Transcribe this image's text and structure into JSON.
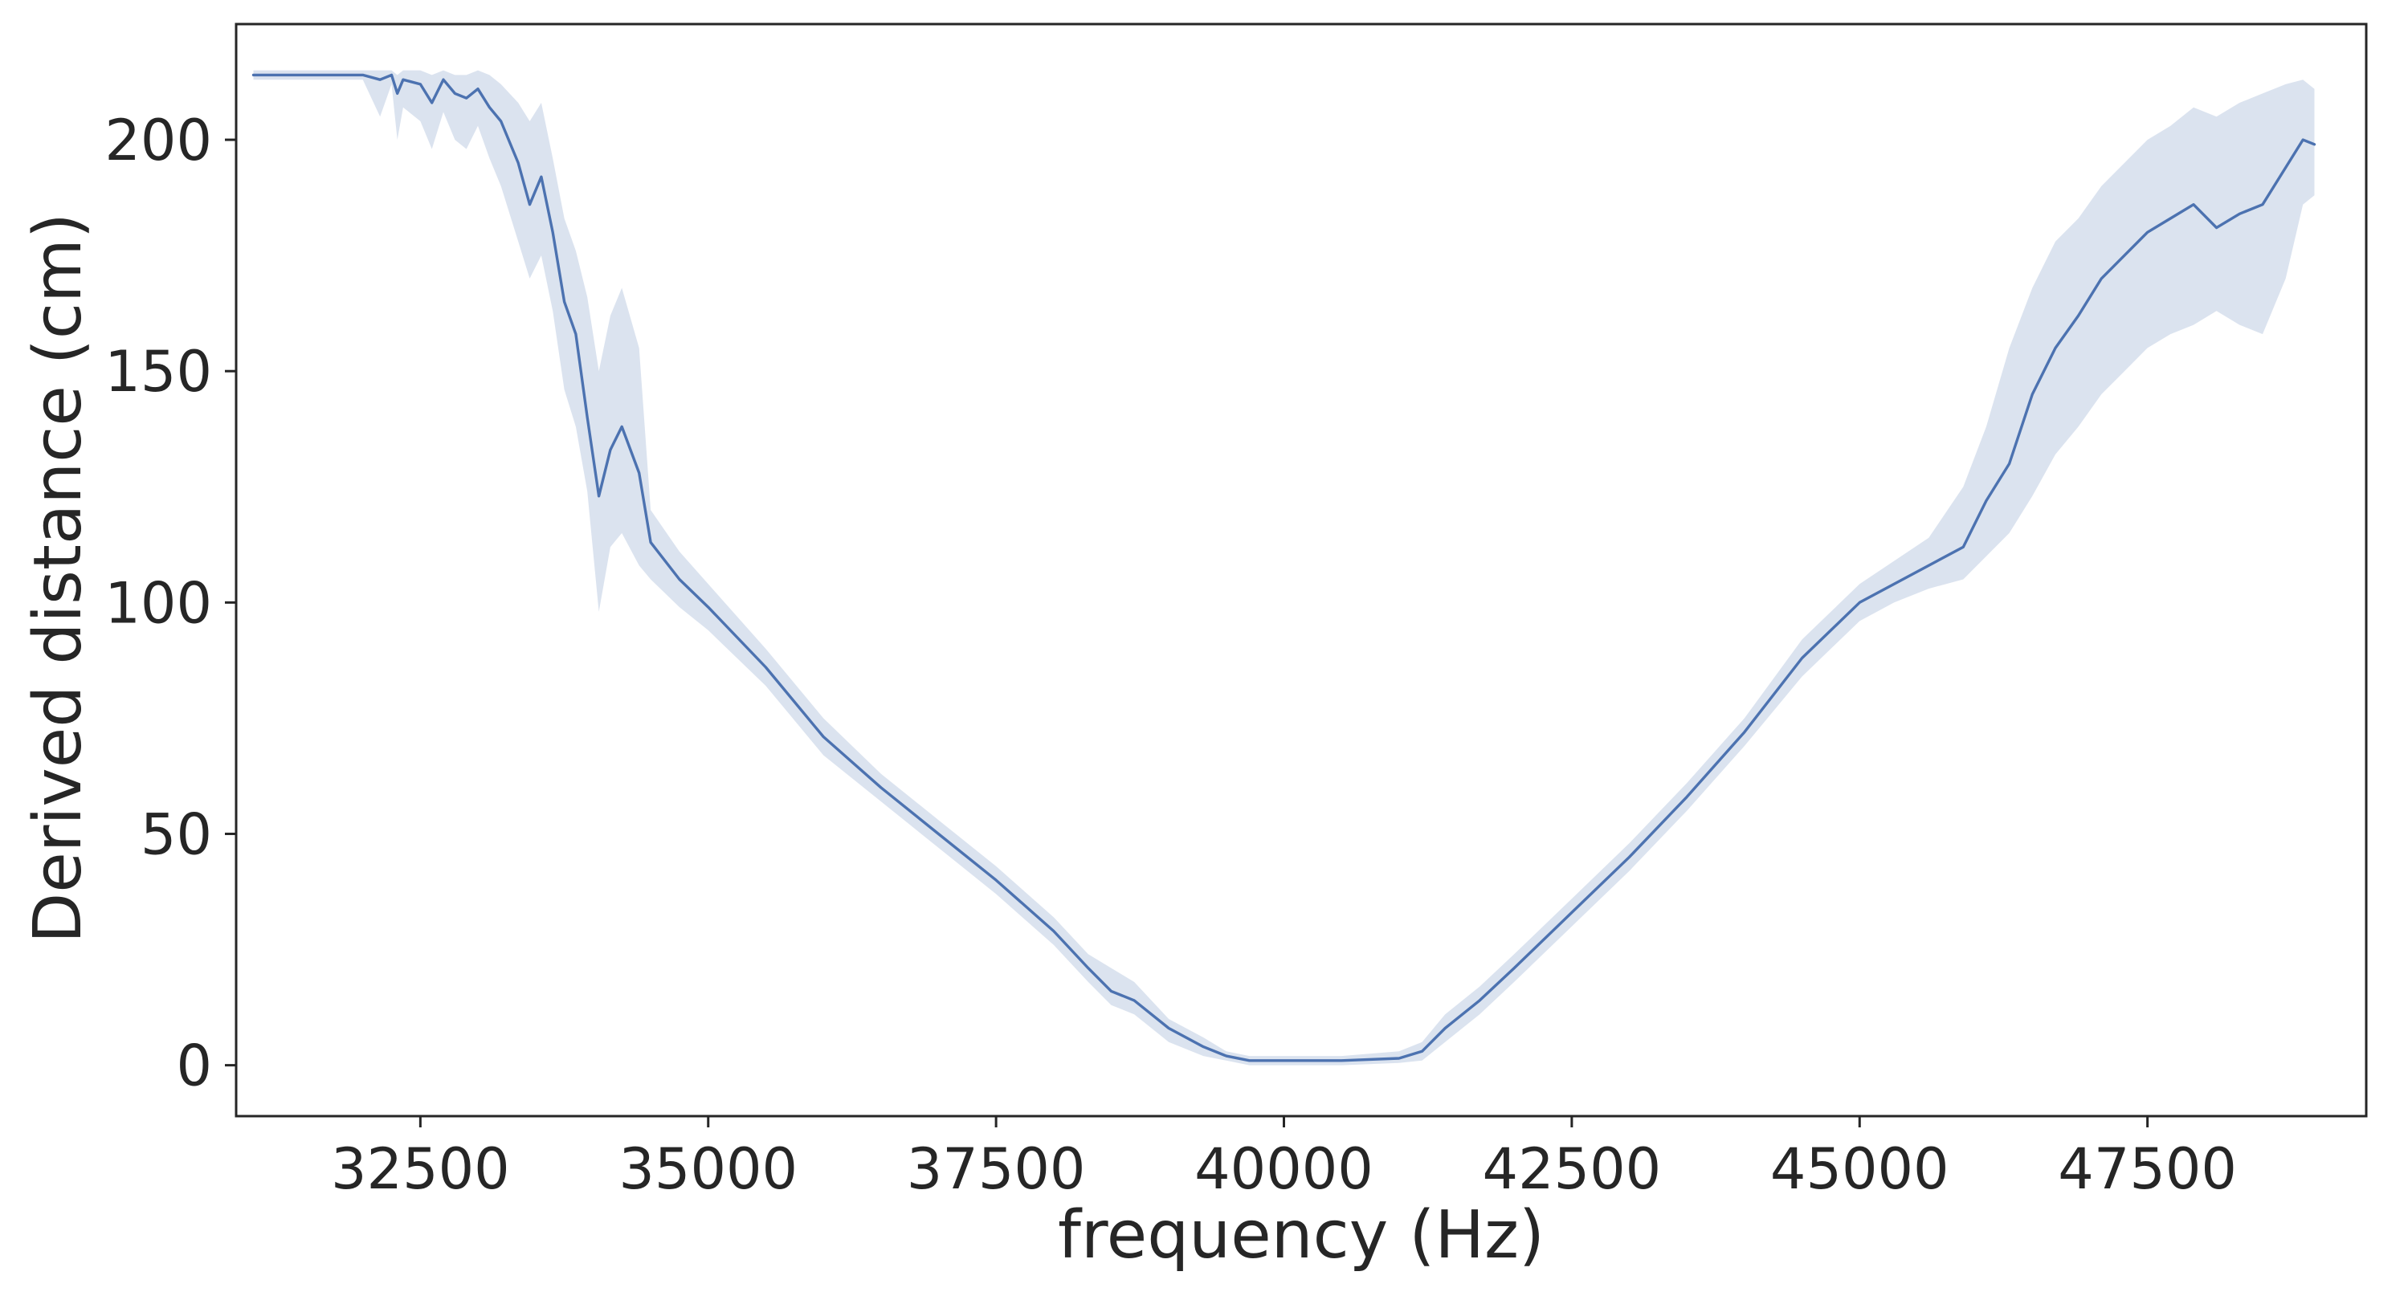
{
  "chart_data": {
    "type": "line",
    "title": "",
    "xlabel": "frequency (Hz)",
    "ylabel": "Derived distance (cm)",
    "xlim": [
      30900,
      49400
    ],
    "ylim": [
      -11,
      225
    ],
    "x_ticks": [
      32500,
      35000,
      37500,
      40000,
      42500,
      45000,
      47500
    ],
    "y_ticks": [
      0,
      50,
      100,
      150,
      200
    ],
    "grid": false,
    "legend": "none",
    "colors": {
      "line": "#4c72b0",
      "band": "#4c72b0",
      "axis": "#262626",
      "text": "#262626"
    },
    "series": [
      {
        "points": [
          [
            31050,
            214,
            213,
            215
          ],
          [
            31500,
            214,
            213,
            215
          ],
          [
            32000,
            214,
            213,
            215
          ],
          [
            32150,
            213,
            205,
            215
          ],
          [
            32250,
            214,
            212,
            215
          ],
          [
            32300,
            210,
            200,
            214
          ],
          [
            32350,
            213,
            207,
            215
          ],
          [
            32500,
            212,
            204,
            215
          ],
          [
            32600,
            208,
            198,
            214
          ],
          [
            32700,
            213,
            206,
            215
          ],
          [
            32800,
            210,
            200,
            214
          ],
          [
            32900,
            209,
            198,
            214
          ],
          [
            33000,
            211,
            203,
            215
          ],
          [
            33100,
            207,
            196,
            214
          ],
          [
            33200,
            204,
            190,
            212
          ],
          [
            33350,
            195,
            178,
            208
          ],
          [
            33450,
            186,
            170,
            204
          ],
          [
            33550,
            192,
            175,
            208
          ],
          [
            33650,
            180,
            163,
            196
          ],
          [
            33750,
            165,
            146,
            183
          ],
          [
            33850,
            158,
            138,
            176
          ],
          [
            33950,
            140,
            124,
            166
          ],
          [
            34050,
            123,
            98,
            150
          ],
          [
            34150,
            133,
            112,
            162
          ],
          [
            34250,
            138,
            115,
            168
          ],
          [
            34400,
            128,
            108,
            155
          ],
          [
            34500,
            113,
            105,
            120
          ],
          [
            34750,
            105,
            99,
            111
          ],
          [
            35000,
            99,
            94,
            104
          ],
          [
            35500,
            86,
            82,
            90
          ],
          [
            36000,
            71,
            67,
            75
          ],
          [
            36500,
            60,
            57,
            63
          ],
          [
            37000,
            50,
            47,
            53
          ],
          [
            37500,
            40,
            37,
            43
          ],
          [
            38000,
            29,
            26,
            32
          ],
          [
            38300,
            21,
            18,
            24
          ],
          [
            38500,
            16,
            13,
            21
          ],
          [
            38700,
            14,
            11,
            18
          ],
          [
            39000,
            8,
            5,
            10
          ],
          [
            39300,
            4,
            2,
            6
          ],
          [
            39500,
            2,
            1,
            3
          ],
          [
            39700,
            1,
            0,
            2
          ],
          [
            40000,
            1,
            0,
            2
          ],
          [
            40500,
            1,
            0,
            2
          ],
          [
            41000,
            1.5,
            0.5,
            3
          ],
          [
            41200,
            3,
            1,
            5
          ],
          [
            41400,
            8,
            5,
            11
          ],
          [
            41700,
            14,
            11,
            17
          ],
          [
            42000,
            21,
            18,
            24
          ],
          [
            42500,
            33,
            30,
            36
          ],
          [
            43000,
            45,
            42,
            48
          ],
          [
            43500,
            58,
            55,
            61
          ],
          [
            44000,
            72,
            69,
            75
          ],
          [
            44500,
            88,
            84,
            92
          ],
          [
            45000,
            100,
            96,
            104
          ],
          [
            45300,
            104,
            100,
            109
          ],
          [
            45600,
            108,
            103,
            114
          ],
          [
            45900,
            112,
            105,
            125
          ],
          [
            46100,
            122,
            110,
            138
          ],
          [
            46300,
            130,
            115,
            155
          ],
          [
            46500,
            145,
            123,
            168
          ],
          [
            46700,
            155,
            132,
            178
          ],
          [
            46900,
            162,
            138,
            183
          ],
          [
            47100,
            170,
            145,
            190
          ],
          [
            47300,
            175,
            150,
            195
          ],
          [
            47500,
            180,
            155,
            200
          ],
          [
            47700,
            183,
            158,
            203
          ],
          [
            47900,
            186,
            160,
            207
          ],
          [
            48100,
            181,
            163,
            205
          ],
          [
            48300,
            184,
            160,
            208
          ],
          [
            48500,
            186,
            158,
            210
          ],
          [
            48700,
            194,
            170,
            212
          ],
          [
            48850,
            200,
            186,
            213
          ],
          [
            48950,
            199,
            188,
            211
          ]
        ]
      }
    ]
  }
}
